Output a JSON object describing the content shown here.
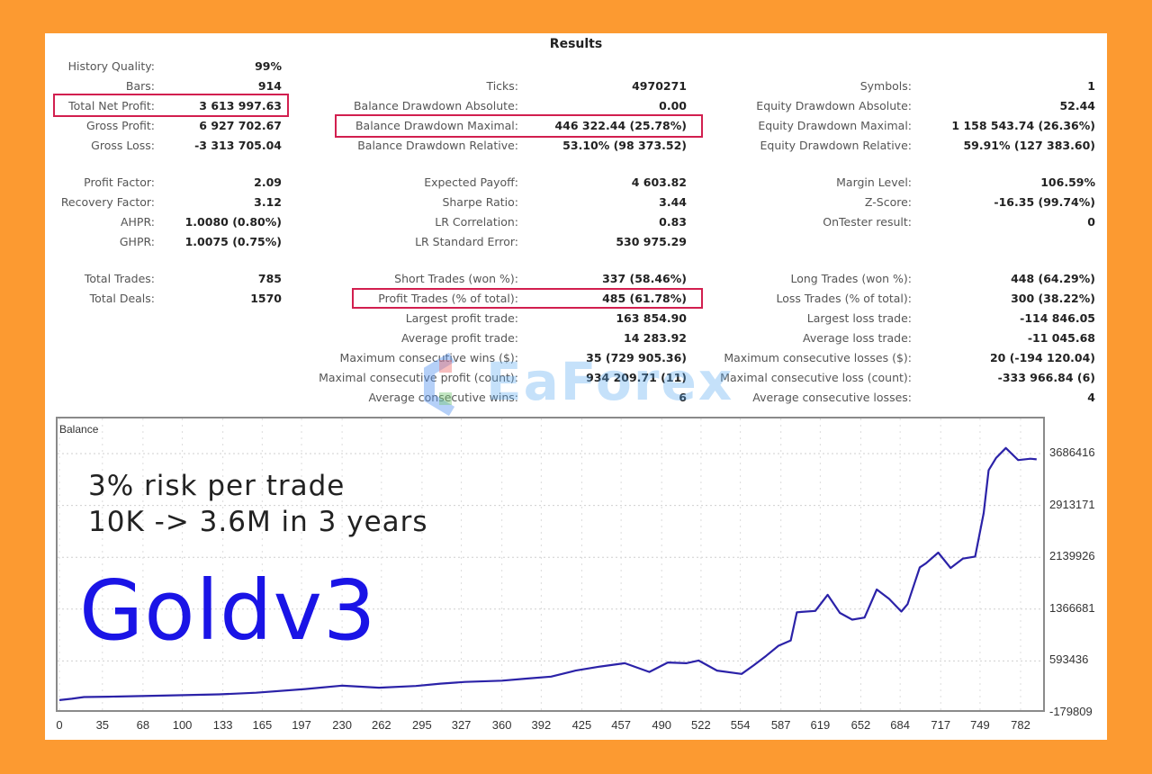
{
  "results": {
    "title": "Results",
    "col1": [
      {
        "label": "History Quality:",
        "value": "99%"
      },
      {
        "label": "Bars:",
        "value": "914"
      },
      {
        "label": "Total Net Profit:",
        "value": "3 613 997.63",
        "highlight": true
      },
      {
        "label": "Gross Profit:",
        "value": "6 927 702.67"
      },
      {
        "label": "Gross Loss:",
        "value": "-3 313 705.04"
      },
      {
        "label": "Profit Factor:",
        "value": "2.09"
      },
      {
        "label": "Recovery Factor:",
        "value": "3.12"
      },
      {
        "label": "AHPR:",
        "value": "1.0080 (0.80%)"
      },
      {
        "label": "GHPR:",
        "value": "1.0075 (0.75%)"
      },
      {
        "label": "Total Trades:",
        "value": "785"
      },
      {
        "label": "Total Deals:",
        "value": "1570"
      }
    ],
    "col2": [
      {
        "label": "Ticks:",
        "value": "4970271"
      },
      {
        "label": "Balance Drawdown Absolute:",
        "value": "0.00"
      },
      {
        "label": "Balance Drawdown Maximal:",
        "value": "446 322.44 (25.78%)",
        "highlight": true
      },
      {
        "label": "Balance Drawdown Relative:",
        "value": "53.10% (98 373.52)"
      },
      {
        "label": "Expected Payoff:",
        "value": "4 603.82"
      },
      {
        "label": "Sharpe Ratio:",
        "value": "3.44"
      },
      {
        "label": "LR Correlation:",
        "value": "0.83"
      },
      {
        "label": "LR Standard Error:",
        "value": "530 975.29"
      },
      {
        "label": "Short Trades (won %):",
        "value": "337 (58.46%)"
      },
      {
        "label": "Profit Trades (% of total):",
        "value": "485 (61.78%)",
        "highlight": true
      },
      {
        "label": "Largest profit trade:",
        "value": "163 854.90"
      },
      {
        "label": "Average profit trade:",
        "value": "14 283.92"
      },
      {
        "label": "Maximum consecutive wins ($):",
        "value": "35 (729 905.36)"
      },
      {
        "label": "Maximal consecutive profit (count):",
        "value": "934 209.71 (11)"
      },
      {
        "label": "Average consecutive wins:",
        "value": "6"
      }
    ],
    "col3": [
      {
        "label": "Symbols:",
        "value": "1"
      },
      {
        "label": "Equity Drawdown Absolute:",
        "value": "52.44"
      },
      {
        "label": "Equity Drawdown Maximal:",
        "value": "1 158 543.74 (26.36%)"
      },
      {
        "label": "Equity Drawdown Relative:",
        "value": "59.91% (127 383.60)"
      },
      {
        "label": "Margin Level:",
        "value": "106.59%"
      },
      {
        "label": "Z-Score:",
        "value": "-16.35 (99.74%)"
      },
      {
        "label": "OnTester result:",
        "value": "0"
      },
      {
        "label": "Long Trades (won %):",
        "value": "448 (64.29%)"
      },
      {
        "label": "Loss Trades (% of total):",
        "value": "300 (38.22%)"
      },
      {
        "label": "Largest loss trade:",
        "value": "-114 846.05"
      },
      {
        "label": "Average loss trade:",
        "value": "-11 045.68"
      },
      {
        "label": "Maximum consecutive losses ($):",
        "value": "20 (-194 120.04)"
      },
      {
        "label": "Maximal consecutive loss (count):",
        "value": "-333 966.84 (6)"
      },
      {
        "label": "Average consecutive losses:",
        "value": "4"
      }
    ]
  },
  "watermark": "EaForex",
  "annotations": {
    "line1": "3% risk per trade",
    "line2": "10K -> 3.6M in 3 years",
    "product": "Goldv3"
  },
  "colors": {
    "background": "#fc9a31",
    "line": "#2b22a8",
    "highlight_box": "#d21f4f",
    "product_label": "#1a14e6"
  },
  "chart_data": {
    "type": "line",
    "title": "Balance",
    "xlabel": "",
    "ylabel": "",
    "x_ticks": [
      0,
      35,
      68,
      100,
      133,
      165,
      197,
      230,
      262,
      295,
      327,
      360,
      392,
      425,
      457,
      490,
      522,
      554,
      587,
      619,
      652,
      684,
      717,
      749,
      782
    ],
    "y_ticks": [
      -179809,
      593436,
      1366681,
      2139926,
      2913171,
      3686416
    ],
    "ylim": [
      -179809,
      3830000
    ],
    "xlim": [
      0,
      800
    ],
    "grid": true,
    "legend": "none",
    "series": [
      {
        "name": "Balance",
        "x": [
          0,
          10,
          20,
          40,
          80,
          130,
          160,
          200,
          230,
          260,
          290,
          310,
          330,
          360,
          380,
          400,
          420,
          440,
          460,
          480,
          495,
          510,
          520,
          535,
          555,
          565,
          575,
          585,
          595,
          600,
          615,
          625,
          635,
          645,
          655,
          665,
          675,
          685,
          690,
          700,
          705,
          715,
          725,
          735,
          745,
          752,
          756,
          762,
          770,
          780,
          790,
          795
        ],
        "y": [
          10000,
          30000,
          55000,
          60000,
          75000,
          95000,
          120000,
          175000,
          225000,
          195000,
          220000,
          255000,
          280000,
          300000,
          330000,
          360000,
          450000,
          510000,
          560000,
          430000,
          570000,
          560000,
          600000,
          450000,
          400000,
          530000,
          670000,
          820000,
          900000,
          1320000,
          1340000,
          1580000,
          1310000,
          1210000,
          1240000,
          1660000,
          1520000,
          1330000,
          1440000,
          1990000,
          2050000,
          2210000,
          1980000,
          2120000,
          2150000,
          2800000,
          3440000,
          3620000,
          3770000,
          3590000,
          3610000,
          3600000
        ]
      }
    ]
  }
}
